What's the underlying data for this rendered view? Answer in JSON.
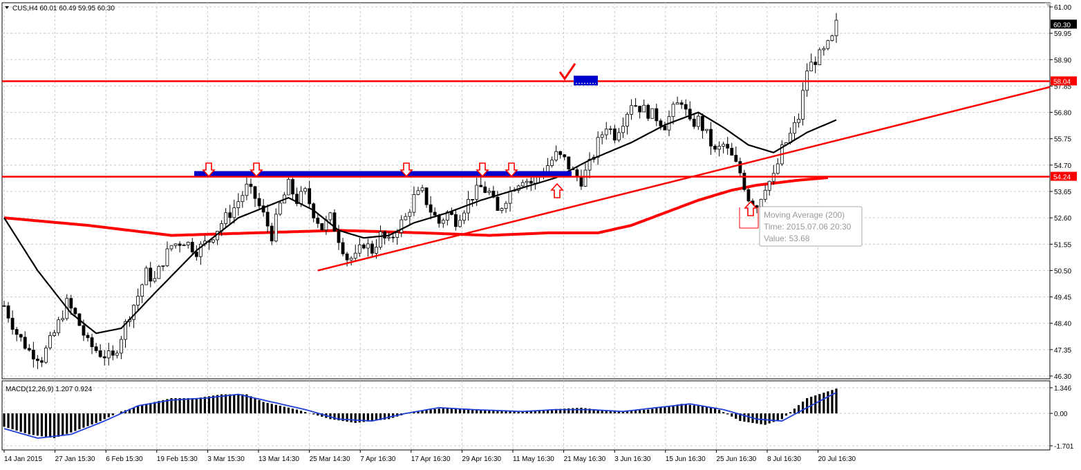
{
  "header": {
    "symbol_line": "CUS,H4  60.01 60.49 59.95 60.30",
    "macd_line": "MACD(12,26,9) 1.207 0.924"
  },
  "price_panel": {
    "y_ticks": [
      "61.00",
      "59.95",
      "58.90",
      "57.85",
      "56.80",
      "55.75",
      "54.70",
      "53.65",
      "52.60",
      "51.55",
      "50.50",
      "49.45",
      "48.40",
      "47.35",
      "46.30"
    ],
    "y_tick_values": [
      61.0,
      59.95,
      58.9,
      57.85,
      56.8,
      55.75,
      54.7,
      53.65,
      52.6,
      51.55,
      50.5,
      49.45,
      48.4,
      47.35,
      46.3
    ],
    "ylim": [
      46.3,
      61.0
    ],
    "current_price_label": "60.30",
    "current_price": 60.3,
    "resistance_label": "58.04",
    "resistance_price": 58.04,
    "support_label": "54.24",
    "support_price": 54.24
  },
  "macd_panel": {
    "y_ticks": [
      "1.346",
      "0.00",
      "-1.701"
    ],
    "y_tick_values": [
      1.346,
      0.0,
      -1.701
    ]
  },
  "x_ticks": [
    "14 Jan 2015",
    "27 Jan 15:30",
    "6 Feb 15:30",
    "19 Feb 15:30",
    "3 Mar 15:30",
    "13 Mar 14:30",
    "25 Mar 14:30",
    "7 Apr 16:30",
    "17 Apr 16:30",
    "29 Apr 16:30",
    "11 May 16:30",
    "21 May 16:30",
    "3 Jun 16:30",
    "15 Jun 16:30",
    "25 Jun 16:30",
    "8 Jul 16:30",
    "20 Jul 16:30"
  ],
  "tooltip": {
    "title": "Moving Average (200)",
    "time": "Time: 2015.07.06 20:30",
    "value": "Value: 53.68"
  },
  "colors": {
    "candle": "#000000",
    "ma_fast": "#000000",
    "ma_slow": "#ff0000",
    "levels": "#ff0000",
    "zone": "#0000cc",
    "macd_signal": "#1f3fd6",
    "grid": "#c8c8c8"
  },
  "chart_data": {
    "type": "candlestick",
    "timeframe": "H4",
    "symbol": "CUS",
    "last_ohlc": {
      "open": 60.01,
      "high": 60.49,
      "low": 59.95,
      "close": 60.3
    },
    "close_path": [
      [
        0,
        49.1
      ],
      [
        3,
        48.0
      ],
      [
        6,
        47.3
      ],
      [
        9,
        47.0
      ],
      [
        12,
        48.0
      ],
      [
        15,
        49.2
      ],
      [
        17,
        48.7
      ],
      [
        20,
        47.6
      ],
      [
        23,
        47.2
      ],
      [
        26,
        47.0
      ],
      [
        28,
        47.9
      ],
      [
        30,
        48.8
      ],
      [
        32,
        49.5
      ],
      [
        34,
        50.4
      ],
      [
        36,
        50.1
      ],
      [
        38,
        50.9
      ],
      [
        40,
        51.5
      ],
      [
        43,
        51.7
      ],
      [
        46,
        51.3
      ],
      [
        49,
        51.7
      ],
      [
        52,
        52.4
      ],
      [
        55,
        53.0
      ],
      [
        58,
        53.8
      ],
      [
        60,
        53.4
      ],
      [
        62,
        52.7
      ],
      [
        64,
        51.9
      ],
      [
        66,
        53.1
      ],
      [
        68,
        53.9
      ],
      [
        70,
        53.3
      ],
      [
        72,
        53.6
      ],
      [
        74,
        52.8
      ],
      [
        76,
        52.2
      ],
      [
        78,
        52.6
      ],
      [
        80,
        51.8
      ],
      [
        82,
        51.0
      ],
      [
        84,
        51.0
      ],
      [
        86,
        51.6
      ],
      [
        88,
        51.3
      ],
      [
        90,
        51.9
      ],
      [
        92,
        51.6
      ],
      [
        94,
        52.2
      ],
      [
        96,
        52.6
      ],
      [
        98,
        53.4
      ],
      [
        100,
        53.6
      ],
      [
        102,
        52.9
      ],
      [
        104,
        52.4
      ],
      [
        106,
        52.8
      ],
      [
        108,
        52.5
      ],
      [
        110,
        53.0
      ],
      [
        112,
        53.5
      ],
      [
        114,
        53.8
      ],
      [
        116,
        53.6
      ],
      [
        118,
        52.8
      ],
      [
        120,
        53.4
      ],
      [
        122,
        53.9
      ],
      [
        124,
        54.2
      ],
      [
        126,
        54.0
      ],
      [
        128,
        54.3
      ],
      [
        130,
        54.7
      ],
      [
        132,
        55.1
      ],
      [
        134,
        54.9
      ],
      [
        136,
        54.4
      ],
      [
        138,
        54.1
      ],
      [
        140,
        54.7
      ],
      [
        142,
        55.6
      ],
      [
        144,
        56.3
      ],
      [
        146,
        55.9
      ],
      [
        148,
        56.5
      ],
      [
        150,
        57.2
      ],
      [
        152,
        57.0
      ],
      [
        154,
        56.8
      ],
      [
        156,
        56.6
      ],
      [
        158,
        56.3
      ],
      [
        160,
        56.9
      ],
      [
        162,
        57.3
      ],
      [
        164,
        56.3
      ],
      [
        166,
        56.5
      ],
      [
        168,
        55.9
      ],
      [
        170,
        55.2
      ],
      [
        172,
        55.5
      ],
      [
        174,
        55.0
      ],
      [
        176,
        54.4
      ],
      [
        178,
        53.4
      ],
      [
        180,
        53.1
      ],
      [
        182,
        53.9
      ],
      [
        184,
        54.2
      ],
      [
        186,
        55.3
      ],
      [
        188,
        55.9
      ],
      [
        190,
        56.6
      ],
      [
        192,
        58.5
      ],
      [
        194,
        58.9
      ],
      [
        196,
        59.2
      ],
      [
        198,
        59.7
      ],
      [
        199,
        60.3
      ]
    ],
    "ma_fast_path": [
      [
        0,
        52.6
      ],
      [
        8,
        50.5
      ],
      [
        16,
        48.8
      ],
      [
        22,
        48.0
      ],
      [
        28,
        48.2
      ],
      [
        36,
        49.6
      ],
      [
        46,
        51.3
      ],
      [
        56,
        52.6
      ],
      [
        62,
        53.0
      ],
      [
        68,
        53.4
      ],
      [
        74,
        52.9
      ],
      [
        80,
        52.1
      ],
      [
        86,
        51.8
      ],
      [
        92,
        51.9
      ],
      [
        98,
        52.4
      ],
      [
        106,
        52.8
      ],
      [
        114,
        53.3
      ],
      [
        124,
        53.8
      ],
      [
        132,
        54.2
      ],
      [
        140,
        54.9
      ],
      [
        150,
        55.6
      ],
      [
        158,
        56.3
      ],
      [
        166,
        56.8
      ],
      [
        172,
        56.2
      ],
      [
        178,
        55.5
      ],
      [
        184,
        55.2
      ],
      [
        192,
        56.0
      ],
      [
        199,
        56.5
      ]
    ],
    "ma_slow_path": [
      [
        0,
        52.6
      ],
      [
        20,
        52.3
      ],
      [
        40,
        51.9
      ],
      [
        60,
        52.0
      ],
      [
        80,
        52.1
      ],
      [
        100,
        52.0
      ],
      [
        116,
        51.9
      ],
      [
        130,
        52.0
      ],
      [
        142,
        52.0
      ],
      [
        150,
        52.3
      ],
      [
        158,
        52.8
      ],
      [
        166,
        53.3
      ],
      [
        174,
        53.7
      ],
      [
        180,
        53.9
      ],
      [
        190,
        54.1
      ],
      [
        197,
        54.2
      ]
    ],
    "trendline_points": [
      [
        75,
        50.5
      ],
      [
        199,
        57.7
      ]
    ],
    "resistance_level": 58.04,
    "support_level": 54.24,
    "macd_histogram_path": [
      [
        0,
        -0.7
      ],
      [
        6,
        -1.1
      ],
      [
        12,
        -1.3
      ],
      [
        16,
        -1.0
      ],
      [
        22,
        -0.5
      ],
      [
        28,
        0.1
      ],
      [
        34,
        0.5
      ],
      [
        40,
        0.8
      ],
      [
        46,
        0.8
      ],
      [
        52,
        1.0
      ],
      [
        58,
        1.0
      ],
      [
        62,
        0.6
      ],
      [
        70,
        0.2
      ],
      [
        78,
        -0.3
      ],
      [
        84,
        -0.5
      ],
      [
        92,
        -0.3
      ],
      [
        98,
        0.1
      ],
      [
        106,
        0.3
      ],
      [
        114,
        0.2
      ],
      [
        122,
        0.1
      ],
      [
        130,
        0.2
      ],
      [
        138,
        0.3
      ],
      [
        146,
        0.1
      ],
      [
        154,
        0.2
      ],
      [
        162,
        0.5
      ],
      [
        170,
        0.3
      ],
      [
        176,
        -0.4
      ],
      [
        182,
        -0.6
      ],
      [
        186,
        -0.3
      ],
      [
        192,
        0.8
      ],
      [
        199,
        1.3
      ]
    ],
    "macd_signal_path": [
      [
        0,
        -0.8
      ],
      [
        8,
        -1.3
      ],
      [
        16,
        -1.1
      ],
      [
        24,
        -0.4
      ],
      [
        32,
        0.4
      ],
      [
        40,
        0.7
      ],
      [
        48,
        0.8
      ],
      [
        56,
        1.0
      ],
      [
        62,
        0.7
      ],
      [
        72,
        0.2
      ],
      [
        80,
        -0.3
      ],
      [
        88,
        -0.4
      ],
      [
        96,
        0.0
      ],
      [
        104,
        0.3
      ],
      [
        112,
        0.2
      ],
      [
        124,
        0.1
      ],
      [
        132,
        0.2
      ],
      [
        140,
        0.2
      ],
      [
        148,
        0.1
      ],
      [
        156,
        0.3
      ],
      [
        164,
        0.5
      ],
      [
        172,
        0.2
      ],
      [
        180,
        -0.3
      ],
      [
        186,
        -0.4
      ],
      [
        192,
        0.3
      ],
      [
        199,
        1.1
      ]
    ]
  }
}
